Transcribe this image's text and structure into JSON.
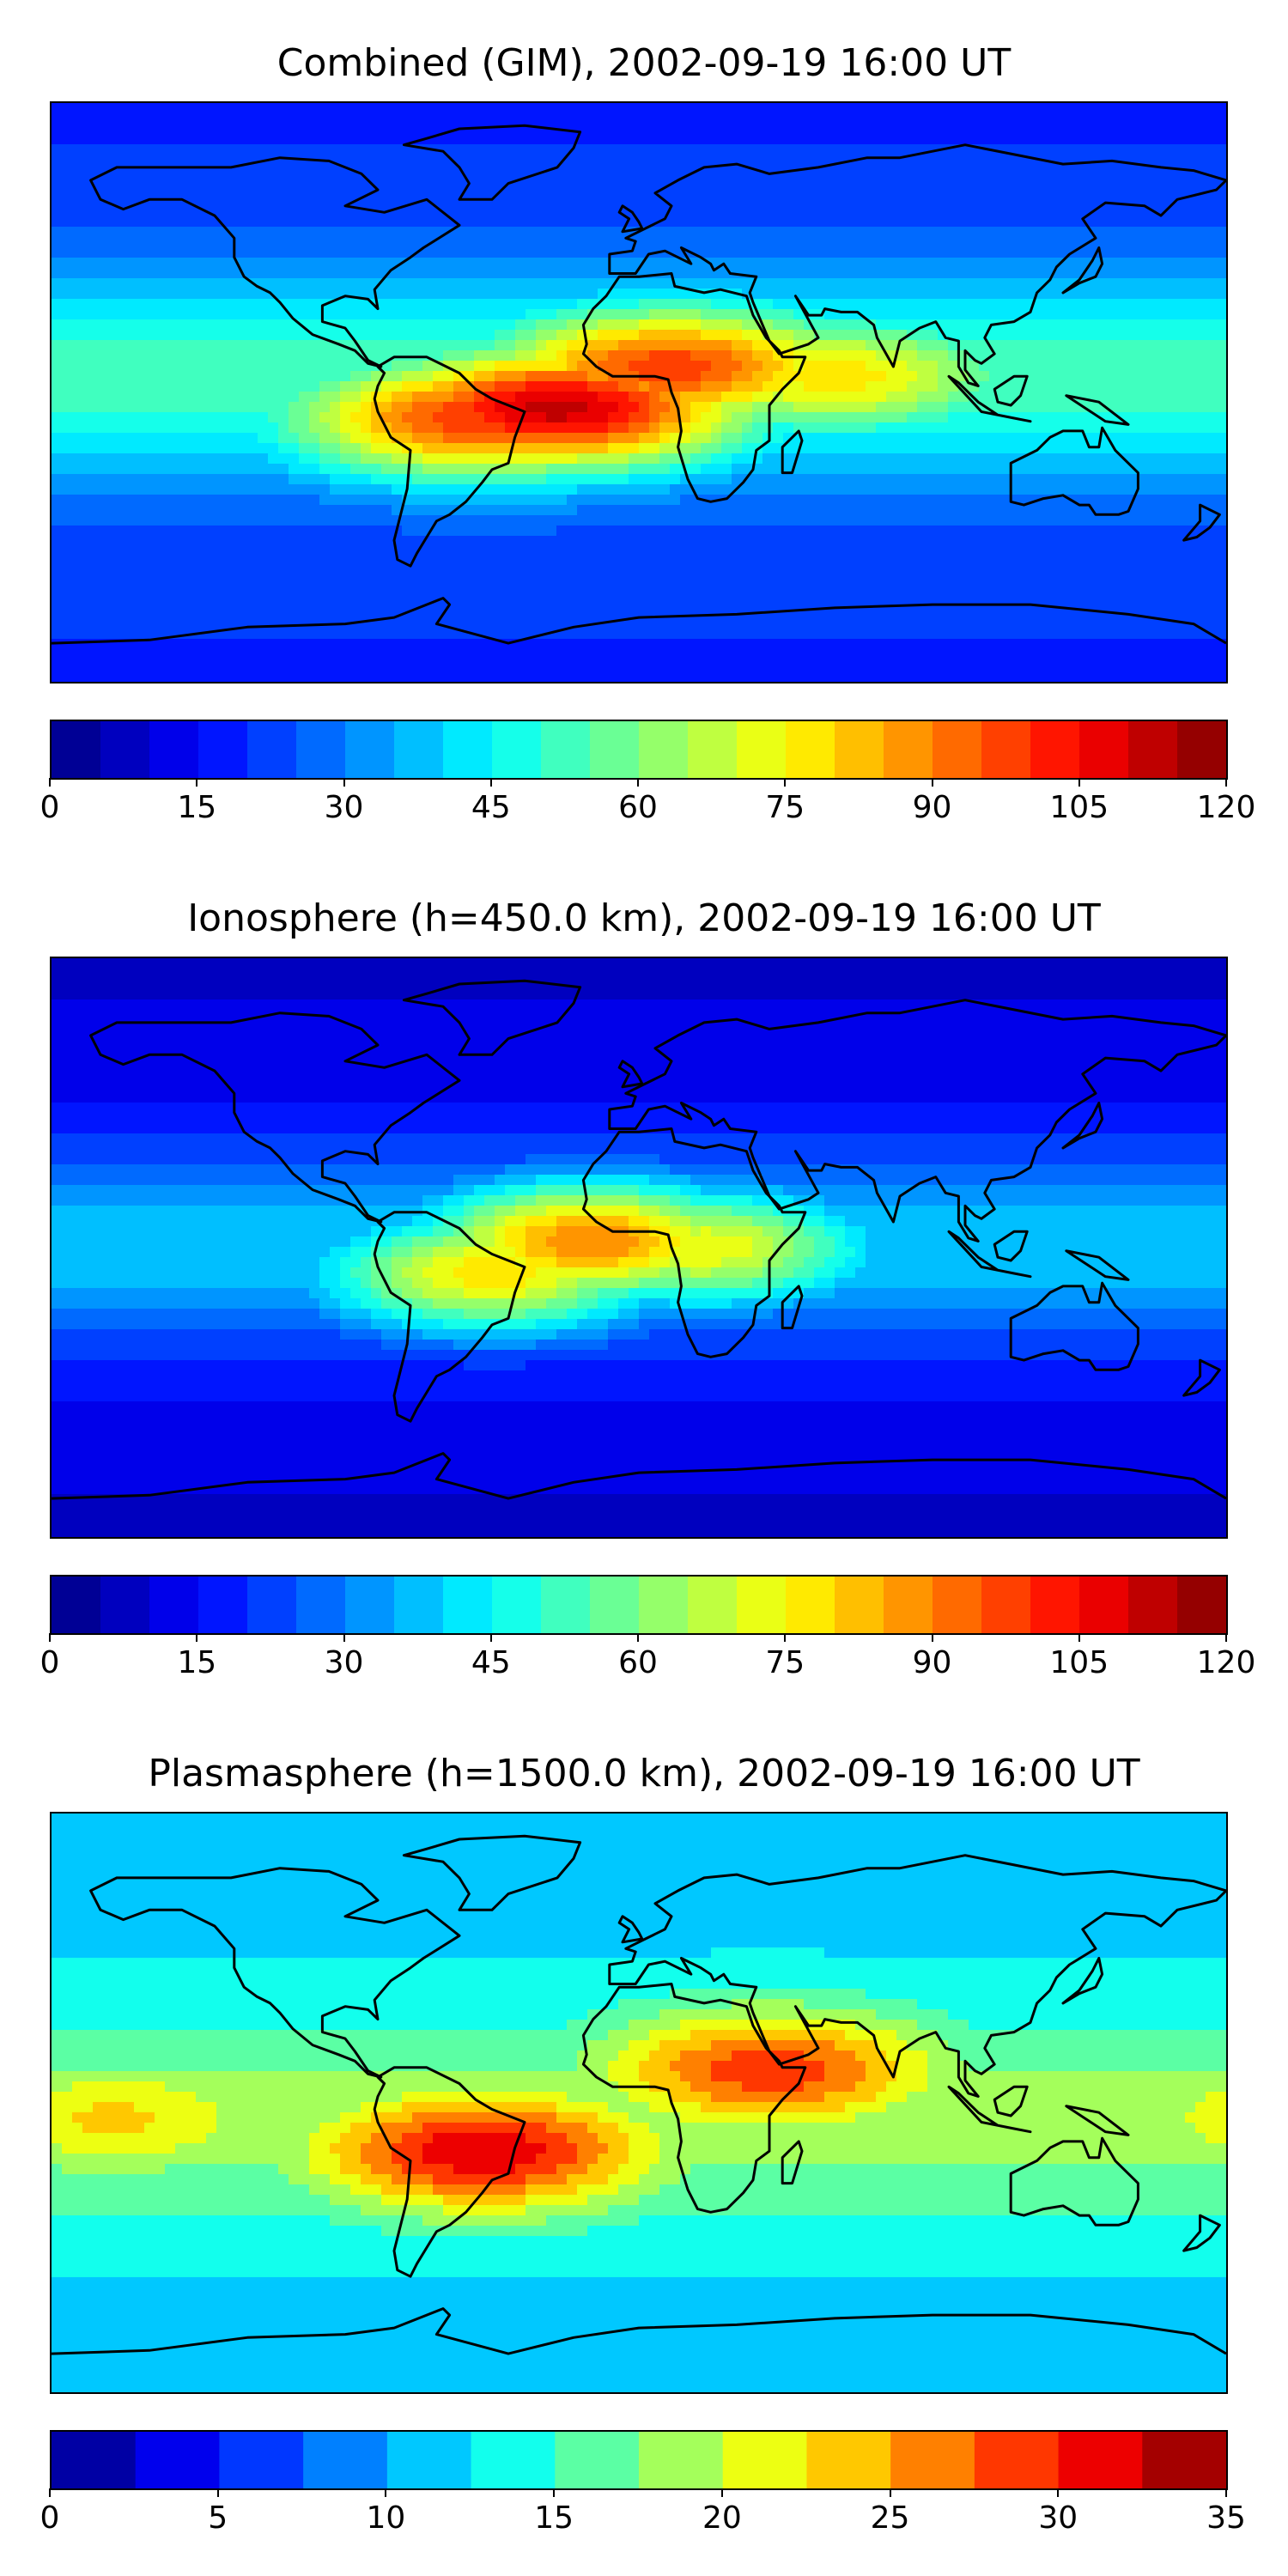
{
  "panels": [
    {
      "title": "Combined (GIM), 2002-09-19 16:00 UT",
      "colorbar": {
        "min": 0,
        "max": 120,
        "step": 5,
        "ticks": [
          "0",
          "15",
          "30",
          "45",
          "60",
          "75",
          "90",
          "105",
          "120"
        ]
      },
      "hotspots": [
        {
          "lon": -25,
          "lat": -5,
          "value": 112
        },
        {
          "lon": -48,
          "lat": -8,
          "value": 100
        },
        {
          "lon": 10,
          "lat": 8,
          "value": 98
        },
        {
          "lon": 60,
          "lat": 5,
          "value": 78
        }
      ],
      "background": 22,
      "peak_band": {
        "lat": 5,
        "width": 45
      }
    },
    {
      "title": "Ionosphere  (h=450.0 km), 2002-09-19 16:00 UT",
      "colorbar": {
        "min": 0,
        "max": 120,
        "step": 5,
        "ticks": [
          "0",
          "15",
          "30",
          "45",
          "60",
          "75",
          "90",
          "105",
          "120"
        ]
      },
      "hotspots": [
        {
          "lon": -15,
          "lat": 2,
          "value": 90
        },
        {
          "lon": -45,
          "lat": -8,
          "value": 78
        },
        {
          "lon": 20,
          "lat": 0,
          "value": 74
        }
      ],
      "background": 12,
      "peak_band": {
        "lat": 0,
        "width": 40
      }
    },
    {
      "title": "Plasmasphere (h=1500.0 km), 2002-09-19 16:00 UT",
      "colorbar": {
        "min": 0,
        "max": 35,
        "step": 2.5,
        "ticks": [
          "0",
          "5",
          "10",
          "15",
          "20",
          "25",
          "30",
          "35"
        ]
      },
      "hotspots": [
        {
          "lon": -48,
          "lat": -15,
          "value": 32
        },
        {
          "lon": 40,
          "lat": 10,
          "value": 29
        },
        {
          "lon": -160,
          "lat": -5,
          "value": 23
        }
      ],
      "background": 12,
      "peak_band": {
        "lat": -5,
        "width": 40
      }
    }
  ]
}
